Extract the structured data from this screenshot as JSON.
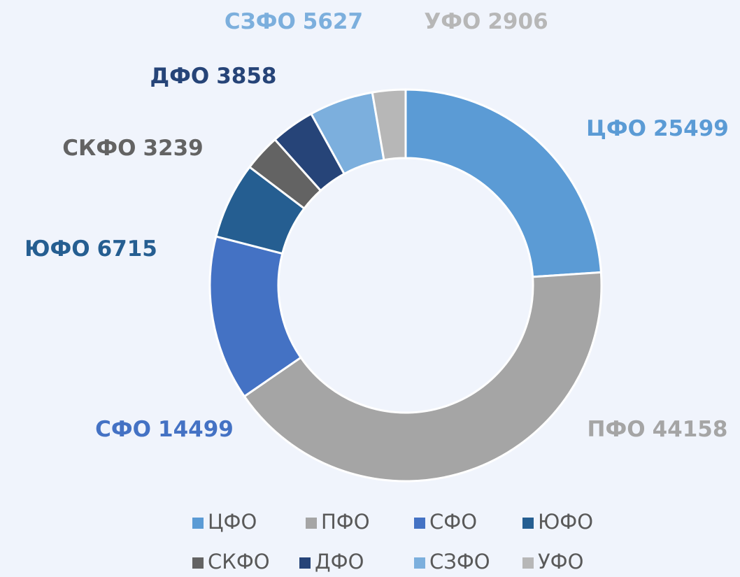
{
  "chart_data": {
    "type": "donut",
    "categories": [
      "ЦФО",
      "ПФО",
      "СФО",
      "ЮФО",
      "СКФО",
      "ДФО",
      "СЗФО",
      "УФО"
    ],
    "values": [
      25499,
      44158,
      14499,
      6715,
      3239,
      3858,
      5627,
      2906
    ],
    "colors": [
      "#5b9bd5",
      "#a5a5a5",
      "#4472c4",
      "#255e91",
      "#636363",
      "#264478",
      "#7cafdd",
      "#b7b7b7"
    ],
    "legend": "bottom"
  }
}
